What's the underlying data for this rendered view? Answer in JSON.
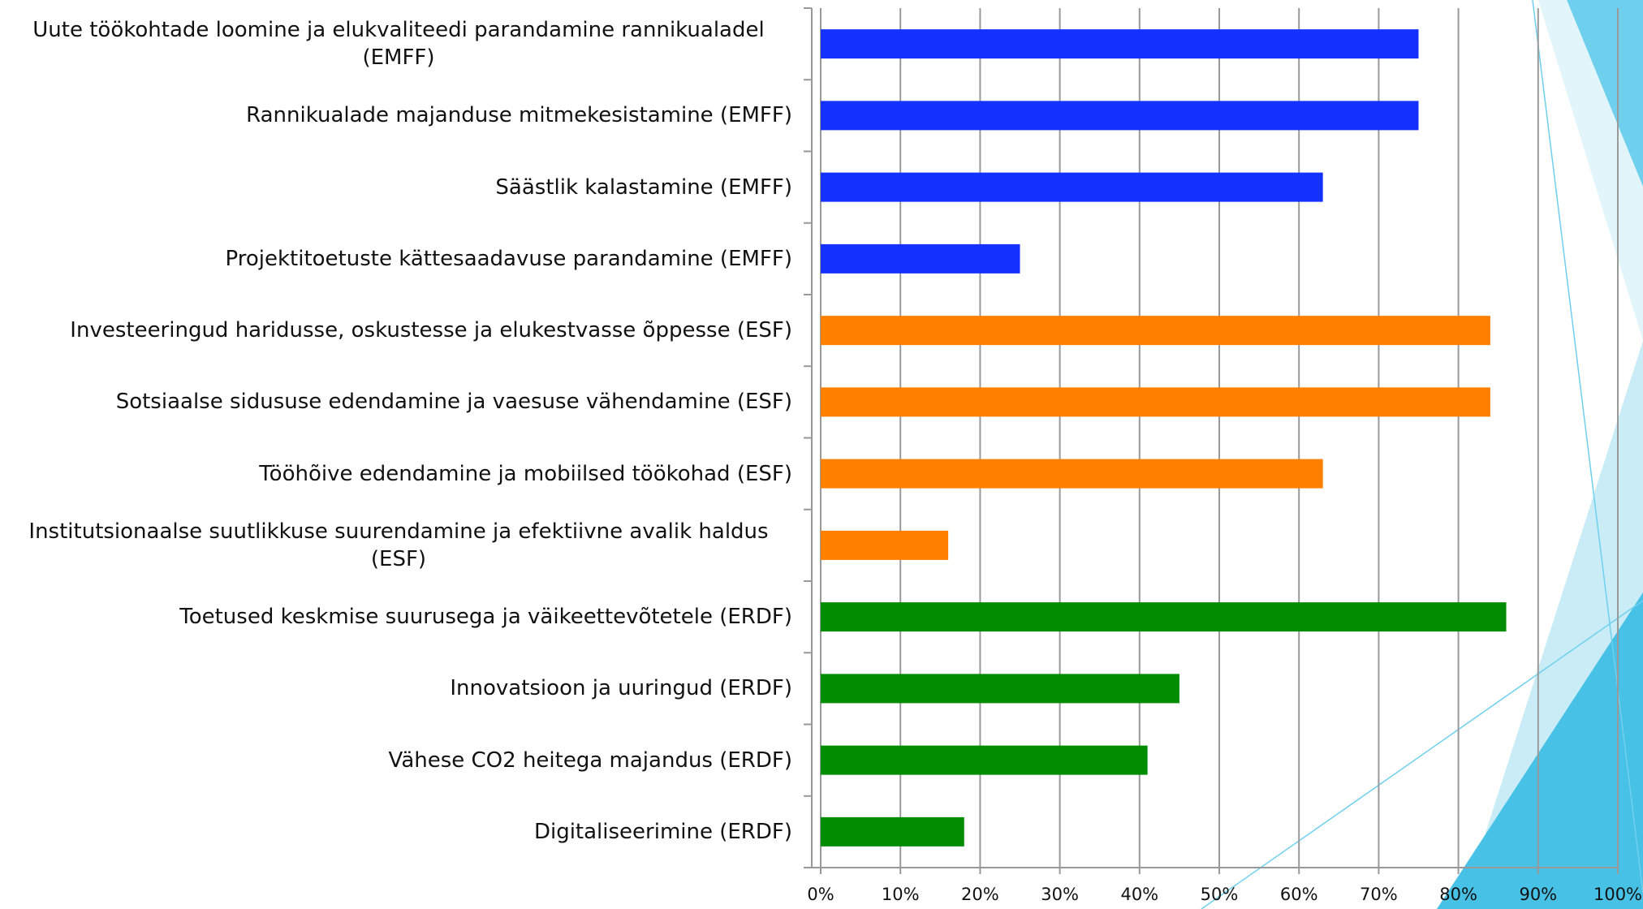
{
  "chart_data": {
    "type": "barh",
    "categories": [
      "Uute töökohtade loomine ja elukvaliteedi parandamine rannikualadel (EMFF)",
      "Rannikualade majanduse mitmekesistamine (EMFF)",
      "Säästlik kalastamine (EMFF)",
      "Projektitoetuste kättesaadavuse parandamine (EMFF)",
      "Investeeringud haridusse, oskustesse ja elukestvasse õppesse (ESF)",
      "Sotsiaalse sidususe edendamine ja vaesuse vähendamine (ESF)",
      "Tööhõive edendamine ja mobiilsed töökohad (ESF)",
      "Institutsionaalse suutlikkuse suurendamine ja efektiivne avalik haldus (ESF)",
      "Toetused keskmise suurusega ja väikeettevõtetele (ERDF)",
      "Innovatsioon ja uuringud (ERDF)",
      "Vähese CO2 heitega majandus (ERDF)",
      "Digitaliseerimine (ERDF)"
    ],
    "values": [
      75,
      75,
      63,
      25,
      84,
      84,
      63,
      16,
      86,
      45,
      41,
      18
    ],
    "colors": [
      "#1432ff",
      "#1432ff",
      "#1432ff",
      "#1432ff",
      "#ff7f00",
      "#ff7f00",
      "#ff7f00",
      "#ff7f00",
      "#008c00",
      "#008c00",
      "#008c00",
      "#008c00"
    ],
    "xlim": [
      0,
      100
    ],
    "xticks": [
      {
        "value": 0,
        "label": "0%"
      },
      {
        "value": 10,
        "label": "10%"
      },
      {
        "value": 20,
        "label": "20%"
      },
      {
        "value": 30,
        "label": "30%"
      },
      {
        "value": 40,
        "label": "40%"
      },
      {
        "value": 50,
        "label": "50%"
      },
      {
        "value": 60,
        "label": "60%"
      },
      {
        "value": 70,
        "label": "70%"
      },
      {
        "value": 80,
        "label": "80%"
      },
      {
        "value": 90,
        "label": "90%"
      },
      {
        "value": 100,
        "label": "100%"
      }
    ],
    "grid": true
  }
}
